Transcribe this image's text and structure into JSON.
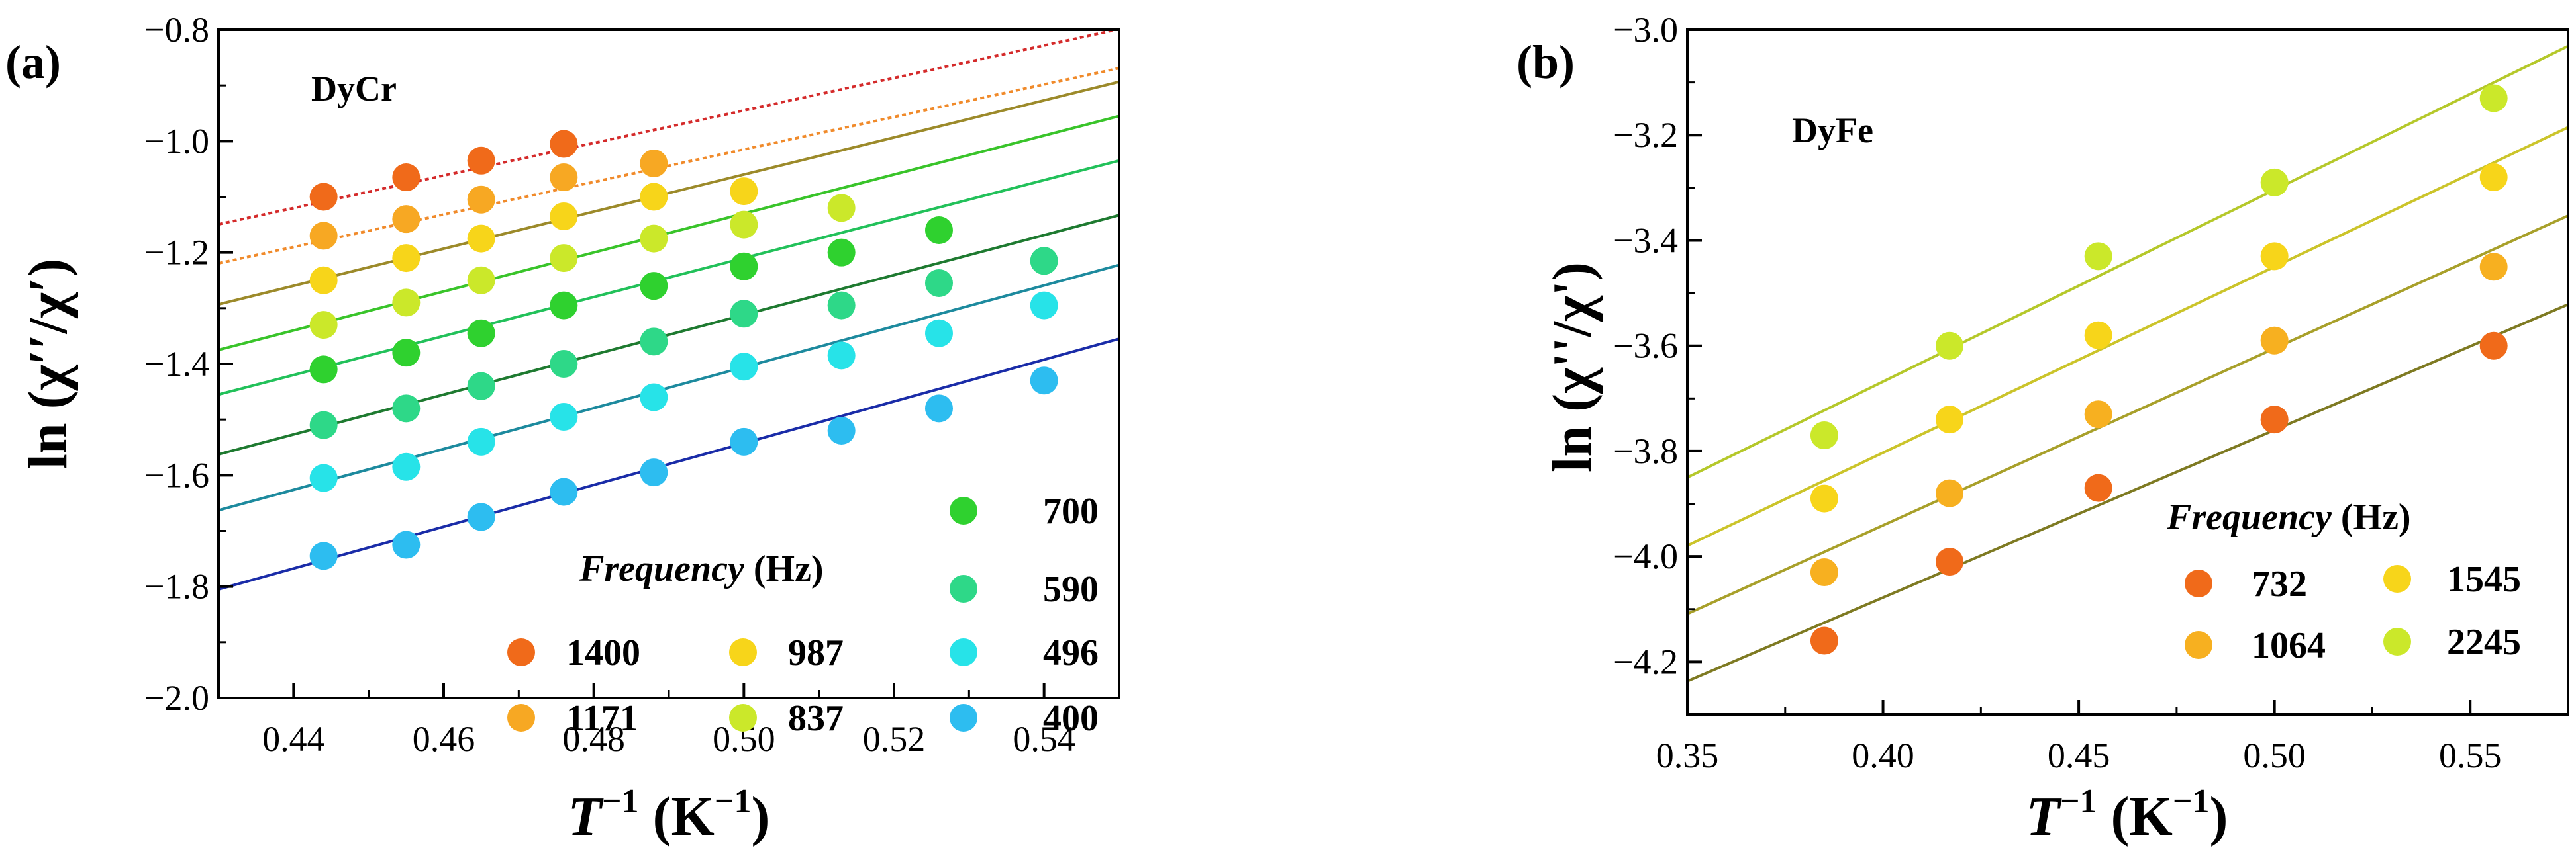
{
  "chart_data": [
    {
      "type": "scatter",
      "panel_label": "(a)",
      "sample_label": "DyCr",
      "xlabel_main": "T",
      "xlabel_sup": "−1",
      "xlabel_unit_open": " (K",
      "xlabel_unit_sup": "−1",
      "xlabel_unit_close": ")",
      "ylabel": "ln (χ′′/χ′)",
      "xlim": [
        0.43,
        0.55
      ],
      "ylim": [
        -2.0,
        -0.8
      ],
      "xticks": [
        0.44,
        0.46,
        0.48,
        0.5,
        0.52,
        0.54
      ],
      "xtick_labels": [
        "0.44",
        "0.46",
        "0.48",
        "0.50",
        "0.52",
        "0.54"
      ],
      "yticks": [
        -2.0,
        -1.8,
        -1.6,
        -1.4,
        -1.2,
        -1.0,
        -0.8
      ],
      "ytick_labels": [
        "−2.0",
        "−1.8",
        "−1.6",
        "−1.4",
        "−1.2",
        "−1.0",
        "−0.8"
      ],
      "legend_title_italic": "Frequency",
      "legend_title_rest": " (Hz)",
      "series": [
        {
          "name": "1400",
          "color": "#f06a1a",
          "line_color": "#d42a2a",
          "dashed": true,
          "x": [
            0.444,
            0.455,
            0.465,
            0.476
          ],
          "y": [
            -1.1,
            -1.065,
            -1.035,
            -1.005
          ],
          "fit": {
            "slope": 2.92,
            "intercept": -2.405
          }
        },
        {
          "name": "1171",
          "color": "#f7a823",
          "line_color": "#f08a2a",
          "dashed": true,
          "x": [
            0.444,
            0.455,
            0.465,
            0.476,
            0.488
          ],
          "y": [
            -1.17,
            -1.14,
            -1.105,
            -1.065,
            -1.04
          ],
          "fit": {
            "slope": 2.92,
            "intercept": -2.475
          }
        },
        {
          "name": "987",
          "color": "#f7d51a",
          "line_color": "#9c8a2a",
          "dashed": false,
          "x": [
            0.444,
            0.455,
            0.465,
            0.476,
            0.488,
            0.5
          ],
          "y": [
            -1.25,
            -1.21,
            -1.175,
            -1.135,
            -1.1,
            -1.09
          ],
          "fit": {
            "slope": 3.33,
            "intercept": -2.725
          }
        },
        {
          "name": "837",
          "color": "#cbe82a",
          "line_color": "#39c42a",
          "dashed": false,
          "x": [
            0.444,
            0.455,
            0.465,
            0.476,
            0.488,
            0.5,
            0.513
          ],
          "y": [
            -1.33,
            -1.29,
            -1.25,
            -1.21,
            -1.175,
            -1.15,
            -1.12
          ],
          "fit": {
            "slope": 3.5,
            "intercept": -2.88
          }
        },
        {
          "name": "700",
          "color": "#2fd12f",
          "line_color": "#22c15a",
          "dashed": false,
          "x": [
            0.444,
            0.455,
            0.465,
            0.476,
            0.488,
            0.5,
            0.513,
            0.526
          ],
          "y": [
            -1.41,
            -1.38,
            -1.345,
            -1.295,
            -1.26,
            -1.225,
            -1.2,
            -1.16
          ],
          "fit": {
            "slope": 3.5,
            "intercept": -2.96
          }
        },
        {
          "name": "590",
          "color": "#2ed888",
          "line_color": "#1e7a30",
          "dashed": false,
          "x": [
            0.444,
            0.455,
            0.465,
            0.476,
            0.488,
            0.5,
            0.513,
            0.526,
            0.54
          ],
          "y": [
            -1.51,
            -1.48,
            -1.44,
            -1.4,
            -1.36,
            -1.31,
            -1.295,
            -1.255,
            -1.215
          ],
          "fit": {
            "slope": 3.58,
            "intercept": -3.102
          }
        },
        {
          "name": "496",
          "color": "#27e3e8",
          "line_color": "#1d8a9e",
          "dashed": false,
          "x": [
            0.444,
            0.455,
            0.465,
            0.476,
            0.488,
            0.5,
            0.513,
            0.526,
            0.54
          ],
          "y": [
            -1.605,
            -1.585,
            -1.54,
            -1.495,
            -1.46,
            -1.405,
            -1.385,
            -1.345,
            -1.295
          ],
          "fit": {
            "slope": 3.67,
            "intercept": -3.241
          }
        },
        {
          "name": "400",
          "color": "#2dbdf0",
          "line_color": "#1a2ca8",
          "dashed": false,
          "x": [
            0.444,
            0.455,
            0.465,
            0.476,
            0.488,
            0.5,
            0.513,
            0.526,
            0.54
          ],
          "y": [
            -1.745,
            -1.725,
            -1.675,
            -1.63,
            -1.595,
            -1.54,
            -1.52,
            -1.48,
            -1.43
          ],
          "fit": {
            "slope": 3.75,
            "intercept": -3.4175
          }
        }
      ]
    },
    {
      "type": "scatter",
      "panel_label": "(b)",
      "sample_label": "DyFe",
      "xlabel_main": "T",
      "xlabel_sup": "−1",
      "xlabel_unit_open": " (K",
      "xlabel_unit_sup": "−1",
      "xlabel_unit_close": ")",
      "ylabel": "ln (χ''/χ')",
      "xlim": [
        0.35,
        0.575
      ],
      "ylim": [
        -4.3,
        -3.0
      ],
      "xticks": [
        0.35,
        0.4,
        0.45,
        0.5,
        0.55
      ],
      "xtick_labels": [
        "0.35",
        "0.40",
        "0.45",
        "0.50",
        "0.55"
      ],
      "yticks": [
        -4.2,
        -4.0,
        -3.8,
        -3.6,
        -3.4,
        -3.2,
        -3.0
      ],
      "ytick_labels": [
        "−4.2",
        "−4.0",
        "−3.8",
        "−3.6",
        "−3.4",
        "−3.2",
        "−3.0"
      ],
      "legend_title_italic": "Frequency",
      "legend_title_rest": " (Hz)",
      "series": [
        {
          "name": "732",
          "color": "#f06a1a",
          "line_color": "#7e7a22",
          "x": [
            0.385,
            0.417,
            0.455,
            0.5,
            0.556
          ],
          "y": [
            -4.16,
            -4.01,
            -3.87,
            -3.74,
            -3.6
          ],
          "fit": {
            "slope": 3.18,
            "intercept": -5.35
          }
        },
        {
          "name": "1064",
          "color": "#f7b020",
          "line_color": "#a8a02a",
          "x": [
            0.385,
            0.417,
            0.455,
            0.5,
            0.556
          ],
          "y": [
            -4.03,
            -3.88,
            -3.73,
            -3.59,
            -3.45
          ],
          "fit": {
            "slope": 3.36,
            "intercept": -5.285
          }
        },
        {
          "name": "1545",
          "color": "#f7d51a",
          "line_color": "#cbc42a",
          "x": [
            0.385,
            0.417,
            0.455,
            0.5,
            0.556
          ],
          "y": [
            -3.89,
            -3.74,
            -3.58,
            -3.43,
            -3.28
          ],
          "fit": {
            "slope": 3.53,
            "intercept": -5.215
          }
        },
        {
          "name": "2245",
          "color": "#cbe82a",
          "line_color": "#b5c82a",
          "x": [
            0.385,
            0.417,
            0.455,
            0.5,
            0.556
          ],
          "y": [
            -3.77,
            -3.6,
            -3.43,
            -3.29,
            -3.13
          ],
          "fit": {
            "slope": 3.64,
            "intercept": -5.124
          }
        }
      ]
    }
  ]
}
